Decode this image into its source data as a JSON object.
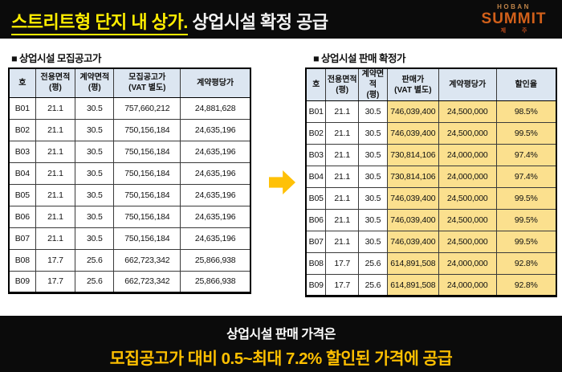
{
  "header": {
    "title_highlight": "스트리트형 단지 내 상가.",
    "title_rest": " 상업시설 확정 공급",
    "logo": {
      "top": "HOBAN",
      "main": "SUMMIT",
      "sub": "제 주"
    }
  },
  "left_table": {
    "section_title": "■ 상업시설 모집공고가",
    "columns": [
      "호",
      "전용면적\n(평)",
      "계약면적\n(평)",
      "모집공고가\n(VAT 별도)",
      "계약평당가"
    ],
    "rows": [
      [
        "B01",
        "21.1",
        "30.5",
        "757,660,212",
        "24,881,628"
      ],
      [
        "B02",
        "21.1",
        "30.5",
        "750,156,184",
        "24,635,196"
      ],
      [
        "B03",
        "21.1",
        "30.5",
        "750,156,184",
        "24,635,196"
      ],
      [
        "B04",
        "21.1",
        "30.5",
        "750,156,184",
        "24,635,196"
      ],
      [
        "B05",
        "21.1",
        "30.5",
        "750,156,184",
        "24,635,196"
      ],
      [
        "B06",
        "21.1",
        "30.5",
        "750,156,184",
        "24,635,196"
      ],
      [
        "B07",
        "21.1",
        "30.5",
        "750,156,184",
        "24,635,196"
      ],
      [
        "B08",
        "17.7",
        "25.6",
        "662,723,342",
        "25,866,938"
      ],
      [
        "B09",
        "17.7",
        "25.6",
        "662,723,342",
        "25,866,938"
      ]
    ]
  },
  "right_table": {
    "section_title": "■ 상업시설 판매 확정가",
    "columns": [
      "호",
      "전용면적\n(평)",
      "계약면적\n(평)",
      "판매가\n(VAT 별도)",
      "계약평당가",
      "할인율"
    ],
    "highlight_columns": [
      3,
      4,
      5
    ],
    "rows": [
      [
        "B01",
        "21.1",
        "30.5",
        "746,039,400",
        "24,500,000",
        "98.5%"
      ],
      [
        "B02",
        "21.1",
        "30.5",
        "746,039,400",
        "24,500,000",
        "99.5%"
      ],
      [
        "B03",
        "21.1",
        "30.5",
        "730,814,106",
        "24,000,000",
        "97.4%"
      ],
      [
        "B04",
        "21.1",
        "30.5",
        "730,814,106",
        "24,000,000",
        "97.4%"
      ],
      [
        "B05",
        "21.1",
        "30.5",
        "746,039,400",
        "24,500,000",
        "99.5%"
      ],
      [
        "B06",
        "21.1",
        "30.5",
        "746,039,400",
        "24,500,000",
        "99.5%"
      ],
      [
        "B07",
        "21.1",
        "30.5",
        "746,039,400",
        "24,500,000",
        "99.5%"
      ],
      [
        "B08",
        "17.7",
        "25.6",
        "614,891,508",
        "24,000,000",
        "92.8%"
      ],
      [
        "B09",
        "17.7",
        "25.6",
        "614,891,508",
        "24,000,000",
        "92.8%"
      ]
    ]
  },
  "footer": {
    "line1": "상업시설 판매 가격은",
    "line2": "모집공고가 대비 0.5~최대 7.2% 할인된 가격에 공급"
  },
  "colors": {
    "title_yellow": "#ffee00",
    "footer_yellow": "#ffc000",
    "arrow_yellow": "#ffc107",
    "table_header_blue": "#dce6f1",
    "highlight_cell_gold": "#fbe08e",
    "band_black": "#0b0b0b"
  }
}
